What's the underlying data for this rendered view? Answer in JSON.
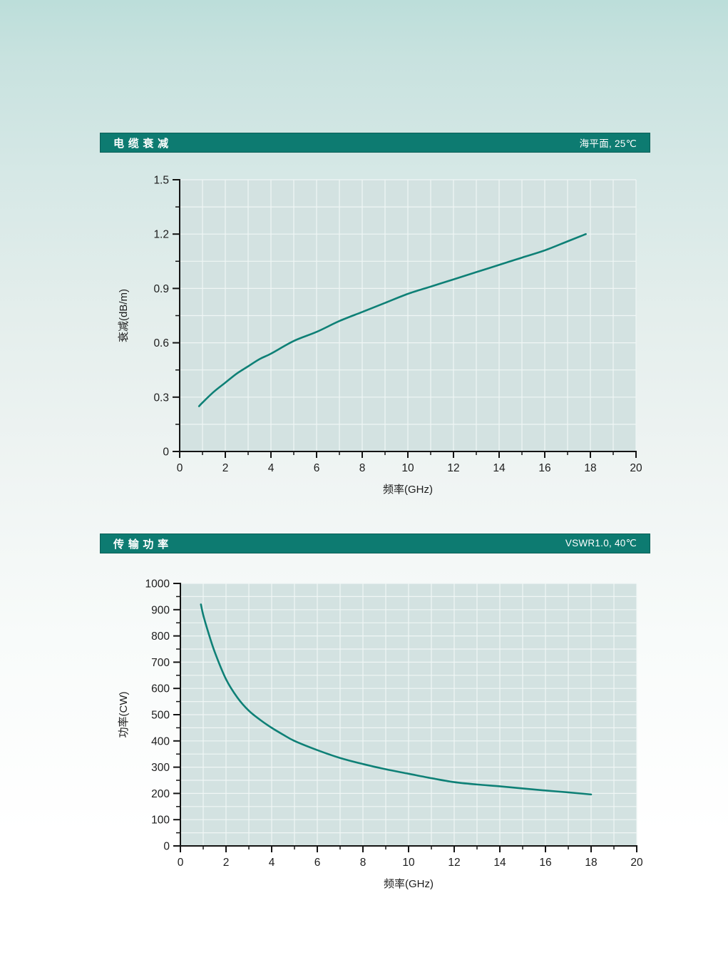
{
  "colors": {
    "header_bg": "#0d7b71",
    "header_border": "#0a5f58",
    "header_text": "#ffffff",
    "plot_bg": "#d3e2e1",
    "grid_line": "#f0f6f5",
    "axis_line": "#141414",
    "tick_label": "#1c1c1c",
    "curve": "#0e8076"
  },
  "chart_data": [
    {
      "type": "line",
      "title": "电缆衰减",
      "condition": "海平面, 25℃",
      "xlabel": "频率(GHz)",
      "ylabel": "衰减(dB/m)",
      "xlim": [
        0,
        20
      ],
      "ylim": [
        0,
        1.5
      ],
      "x_major_ticks": [
        0,
        2,
        4,
        6,
        8,
        10,
        12,
        14,
        16,
        18,
        20
      ],
      "y_major_ticks": [
        0,
        0.3,
        0.6,
        0.9,
        1.2,
        1.5
      ],
      "x_minor_step": 1,
      "y_minor_step": 0.15,
      "grid": true,
      "legend": "none",
      "series": [
        {
          "name": "衰减(dB/m)",
          "x": [
            0.85,
            1,
            1.5,
            2,
            2.5,
            3,
            3.5,
            4,
            5,
            6,
            7,
            8,
            9,
            10,
            11,
            12,
            13,
            14,
            15,
            16,
            17,
            17.8
          ],
          "y": [
            0.25,
            0.27,
            0.33,
            0.38,
            0.43,
            0.47,
            0.51,
            0.54,
            0.61,
            0.66,
            0.72,
            0.77,
            0.82,
            0.87,
            0.91,
            0.95,
            0.99,
            1.03,
            1.07,
            1.11,
            1.16,
            1.2
          ]
        }
      ]
    },
    {
      "type": "line",
      "title": "传输功率",
      "condition": "VSWR1.0, 40℃",
      "xlabel": "频率(GHz)",
      "ylabel": "功率(CW)",
      "xlim": [
        0,
        20
      ],
      "ylim": [
        0,
        1000
      ],
      "x_major_ticks": [
        0,
        2,
        4,
        6,
        8,
        10,
        12,
        14,
        16,
        18,
        20
      ],
      "y_major_ticks": [
        0,
        100,
        200,
        300,
        400,
        500,
        600,
        700,
        800,
        900,
        1000
      ],
      "x_minor_step": 1,
      "y_minor_step": 50,
      "grid": true,
      "legend": "none",
      "series": [
        {
          "name": "功率(CW)",
          "x": [
            0.9,
            1,
            1.2,
            1.5,
            2,
            2.5,
            3,
            3.5,
            4,
            4.5,
            5,
            6,
            7,
            8,
            9,
            10,
            11,
            12,
            13,
            14,
            15,
            16,
            17,
            18
          ],
          "y": [
            920,
            880,
            820,
            740,
            635,
            565,
            515,
            480,
            450,
            424,
            400,
            365,
            335,
            312,
            292,
            275,
            258,
            243,
            234,
            227,
            219,
            211,
            204,
            196
          ]
        }
      ]
    }
  ]
}
